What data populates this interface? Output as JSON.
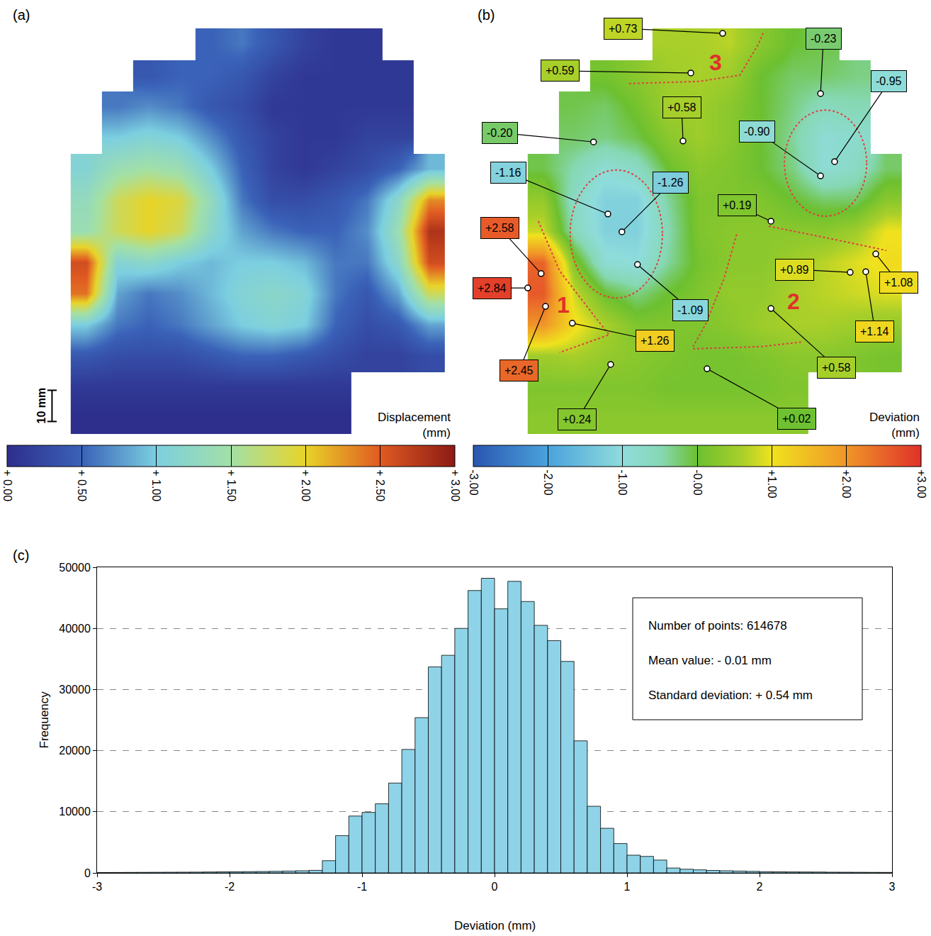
{
  "chart_data": [
    {
      "type": "heatmap",
      "panel_label": "(a)",
      "x": [
        5,
        15,
        25,
        35,
        45,
        55,
        65,
        75,
        85,
        95,
        105,
        115
      ],
      "y": [
        5,
        15,
        25,
        35,
        45,
        55,
        65,
        75,
        85,
        95,
        105,
        115,
        125
      ],
      "z": [
        [
          0.0,
          0.0,
          0.0,
          0.0,
          0.0,
          0.0,
          0.0,
          0.0,
          0.0,
          null,
          null,
          null
        ],
        [
          0.1,
          0.1,
          0.1,
          0.1,
          0.1,
          0.1,
          0.1,
          0.1,
          0.1,
          null,
          null,
          null
        ],
        [
          0.4,
          0.3,
          0.3,
          0.3,
          0.4,
          0.5,
          0.5,
          0.4,
          0.3,
          0.2,
          0.2,
          0.3
        ],
        [
          1.0,
          0.6,
          0.5,
          0.6,
          0.8,
          1.0,
          1.1,
          1.0,
          0.5,
          0.3,
          0.4,
          0.8
        ],
        [
          2.4,
          0.8,
          0.6,
          0.7,
          0.9,
          1.1,
          1.2,
          1.1,
          0.6,
          0.4,
          0.8,
          1.8
        ],
        [
          2.6,
          1.1,
          1.2,
          1.0,
          0.9,
          1.0,
          1.0,
          0.9,
          0.6,
          0.6,
          1.2,
          2.6
        ],
        [
          1.4,
          1.8,
          2.0,
          1.8,
          1.2,
          0.8,
          0.6,
          0.5,
          0.5,
          0.7,
          1.4,
          2.8
        ],
        [
          1.3,
          1.8,
          2.0,
          1.9,
          1.3,
          0.6,
          0.3,
          0.3,
          0.4,
          0.6,
          1.2,
          2.3
        ],
        [
          1.1,
          1.4,
          1.5,
          1.4,
          1.0,
          0.5,
          0.2,
          0.1,
          0.2,
          0.3,
          0.5,
          0.9
        ],
        [
          null,
          1.0,
          1.1,
          1.0,
          0.7,
          0.4,
          0.2,
          0.1,
          0.1,
          0.2,
          0.2,
          null
        ],
        [
          null,
          0.6,
          0.7,
          0.6,
          0.4,
          0.3,
          0.1,
          0.1,
          0.1,
          0.1,
          0.1,
          null
        ],
        [
          null,
          null,
          0.4,
          0.5,
          0.5,
          0.4,
          0.2,
          0.1,
          0.1,
          0.1,
          0.1,
          null
        ],
        [
          null,
          null,
          null,
          null,
          0.5,
          0.6,
          0.4,
          0.2,
          0.1,
          0.1,
          null,
          null
        ]
      ],
      "xlim": [
        -12,
        120
      ],
      "ylim": [
        0,
        130
      ],
      "tick_labels": false,
      "colorbar": {
        "title": "Displacement (mm)",
        "range": [
          0,
          3
        ],
        "ticks": [
          {
            "value": 0,
            "label": "+ 0.00"
          },
          {
            "value": 0.5,
            "label": "+ 0.50"
          },
          {
            "value": 1,
            "label": "+ 1.00"
          },
          {
            "value": 1.5,
            "label": "+ 1.50"
          },
          {
            "value": 2,
            "label": "+ 2.00"
          },
          {
            "value": 2.5,
            "label": "+ 2.50"
          },
          {
            "value": 3,
            "label": "+ 3.00"
          }
        ]
      },
      "scale_bar": {
        "label": "10 mm",
        "length": 10
      }
    },
    {
      "type": "heatmap",
      "panel_label": "(b)",
      "x": [
        5,
        15,
        25,
        35,
        45,
        55,
        65,
        75,
        85,
        95,
        105,
        115
      ],
      "y": [
        5,
        15,
        25,
        35,
        45,
        55,
        65,
        75,
        85,
        95,
        105,
        115,
        125
      ],
      "z": [
        [
          0.3,
          0.3,
          0.3,
          0.3,
          0.3,
          0.3,
          0.3,
          0.3,
          0.3,
          null,
          null,
          null
        ],
        [
          0.2,
          0.2,
          0.2,
          0.2,
          0.1,
          0.1,
          0.1,
          0.1,
          0.2,
          null,
          null,
          null
        ],
        [
          0.5,
          0.6,
          0.4,
          0.3,
          0.2,
          0.1,
          0.1,
          0.2,
          0.3,
          0.3,
          0.2,
          0.1
        ],
        [
          2.0,
          1.1,
          0.6,
          0.2,
          0.2,
          0.2,
          0.3,
          0.5,
          0.6,
          0.6,
          0.5,
          0.4
        ],
        [
          2.6,
          0.8,
          0.0,
          -0.3,
          0.0,
          0.2,
          0.4,
          0.4,
          0.6,
          0.7,
          0.8,
          0.9
        ],
        [
          2.5,
          0.2,
          -0.9,
          -1.0,
          -0.4,
          0.1,
          0.3,
          0.3,
          0.5,
          0.7,
          0.9,
          1.1
        ],
        [
          0.8,
          -0.6,
          -1.2,
          -1.2,
          -0.5,
          0.2,
          0.3,
          0.3,
          0.3,
          0.3,
          0.5,
          1.0
        ],
        [
          0.4,
          -0.7,
          -1.2,
          -1.2,
          -0.4,
          0.2,
          0.2,
          0.2,
          0.0,
          -0.2,
          -0.2,
          0.3
        ],
        [
          -0.1,
          -0.5,
          -0.9,
          -0.7,
          0.0,
          0.3,
          0.2,
          0.0,
          -0.3,
          -0.9,
          -0.7,
          -0.2
        ],
        [
          null,
          -0.2,
          -0.3,
          -0.1,
          0.3,
          0.5,
          0.3,
          0.0,
          -0.4,
          -0.9,
          -0.8,
          null
        ],
        [
          null,
          -0.1,
          -0.2,
          0.1,
          0.5,
          0.5,
          0.3,
          0.0,
          -0.3,
          -0.6,
          -0.5,
          null
        ],
        [
          null,
          null,
          0.1,
          0.3,
          0.5,
          0.6,
          0.5,
          0.0,
          -0.2,
          -0.2,
          -0.3,
          null
        ],
        [
          null,
          null,
          null,
          null,
          0.6,
          0.6,
          0.7,
          0.3,
          0.0,
          -0.1,
          null,
          null
        ]
      ],
      "xlim": [
        -12,
        120
      ],
      "ylim": [
        0,
        130
      ],
      "tick_labels": false,
      "colorbar": {
        "title": "Deviation (mm)",
        "range": [
          -3,
          3
        ],
        "ticks": [
          {
            "value": -3,
            "label": "-3.00"
          },
          {
            "value": -2,
            "label": "-2.00"
          },
          {
            "value": -1,
            "label": "-1.00"
          },
          {
            "value": 0,
            "label": "-0.00"
          },
          {
            "value": 1,
            "label": "+1.00"
          },
          {
            "value": 2,
            "label": "+2.00"
          },
          {
            "value": 3,
            "label": "+3.00"
          }
        ]
      },
      "points": [
        {
          "x": 62.5,
          "y": 128.4,
          "value": 0.73,
          "label": "+0.73"
        },
        {
          "x": 52.3,
          "y": 115.7,
          "value": 0.59,
          "label": "+0.59"
        },
        {
          "x": 93.9,
          "y": 109.1,
          "value": -0.23,
          "label": "-0.23"
        },
        {
          "x": 98.4,
          "y": 87.3,
          "value": -0.95,
          "label": "-0.95"
        },
        {
          "x": 49.8,
          "y": 93.9,
          "value": 0.58,
          "label": "+0.58"
        },
        {
          "x": 21.1,
          "y": 93.6,
          "value": -0.2,
          "label": "-0.20"
        },
        {
          "x": 93.9,
          "y": 82.7,
          "value": -0.9,
          "label": "-0.90"
        },
        {
          "x": 25.7,
          "y": 70.5,
          "value": -1.16,
          "label": "-1.16"
        },
        {
          "x": 30.2,
          "y": 64.8,
          "value": -1.26,
          "label": "-1.26"
        },
        {
          "x": 78,
          "y": 68.2,
          "value": 0.19,
          "label": "+0.19"
        },
        {
          "x": 4.3,
          "y": 51.4,
          "value": 2.58,
          "label": "+2.58"
        },
        {
          "x": 0,
          "y": 46.8,
          "value": 2.84,
          "label": "+2.84"
        },
        {
          "x": 35.2,
          "y": 54.3,
          "value": -1.09,
          "label": "-1.09"
        },
        {
          "x": 103.4,
          "y": 51.8,
          "value": 0.89,
          "label": "+0.89"
        },
        {
          "x": 111.6,
          "y": 57.7,
          "value": 1.08,
          "label": "+1.08"
        },
        {
          "x": 108.4,
          "y": 52,
          "value": 1.14,
          "label": "+1.14"
        },
        {
          "x": 14.3,
          "y": 35.5,
          "value": 1.26,
          "label": "+1.26"
        },
        {
          "x": 5.7,
          "y": 40.9,
          "value": 2.45,
          "label": "+2.45"
        },
        {
          "x": 78,
          "y": 40.2,
          "value": 0.58,
          "label": "+0.58"
        },
        {
          "x": 26.6,
          "y": 22.3,
          "value": 0.24,
          "label": "+0.24"
        },
        {
          "x": 57.5,
          "y": 20.9,
          "value": 0.02,
          "label": "+0.02"
        }
      ],
      "region_labels": [
        {
          "x": 11.4,
          "y": 41.4,
          "text": "1"
        },
        {
          "x": 85.2,
          "y": 42.5,
          "text": "2"
        },
        {
          "x": 60.2,
          "y": 119.1,
          "text": "3"
        }
      ],
      "region_outlines": [
        [
          [
            32.5,
            112.3
          ],
          [
            55,
            113
          ],
          [
            68,
            115
          ],
          [
            74,
            125
          ],
          [
            75.7,
            129
          ]
        ],
        [
          [
            3.4,
            68.2
          ],
          [
            10.2,
            52.3
          ],
          [
            21.6,
            37.5
          ],
          [
            26.1,
            31.8
          ],
          [
            10.2,
            26.1
          ]
        ],
        [
          [
            67,
            64
          ],
          [
            63,
            50
          ],
          [
            57,
            35
          ],
          [
            53,
            28
          ]
        ],
        [
          [
            53,
            27.3
          ],
          [
            75,
            28
          ],
          [
            88,
            29.5
          ]
        ],
        [
          [
            77.3,
            66.6
          ],
          [
            100,
            62
          ],
          [
            115,
            58.8
          ]
        ]
      ],
      "region_ellipses": [
        {
          "cx": 28.4,
          "cy": 64.1,
          "rx": 14.8,
          "ry": 20.5
        },
        {
          "cx": 95.5,
          "cy": 86.8,
          "rx": 13.2,
          "ry": 17
        }
      ]
    },
    {
      "type": "histogram",
      "panel_label": "(c)",
      "bins": [
        -3,
        -2.9,
        -2.8,
        -2.7,
        -2.6,
        -2.5,
        -2.4,
        -2.3,
        -2.2,
        -2.1,
        -2,
        -1.9,
        -1.8,
        -1.7,
        -1.6,
        -1.5,
        -1.4,
        -1.3,
        -1.2,
        -1.1,
        -1,
        -0.9,
        -0.8,
        -0.7,
        -0.6,
        -0.5,
        -0.4,
        -0.3,
        -0.2,
        -0.1,
        0,
        0.1,
        0.2,
        0.3,
        0.4,
        0.5,
        0.6,
        0.7,
        0.8,
        0.9,
        1,
        1.1,
        1.2,
        1.3,
        1.4,
        1.5,
        1.6,
        1.7,
        1.8,
        1.9,
        2,
        2.1,
        2.2,
        2.3,
        2.4,
        2.5,
        2.6,
        2.7,
        2.8,
        2.9,
        3
      ],
      "counts": [
        60,
        70,
        80,
        90,
        100,
        110,
        120,
        130,
        150,
        170,
        190,
        210,
        230,
        260,
        300,
        350,
        420,
        2000,
        6100,
        9300,
        9900,
        11300,
        14700,
        20200,
        25400,
        33700,
        35600,
        40000,
        46200,
        48200,
        43200,
        47700,
        44400,
        40500,
        38000,
        34600,
        21600,
        10900,
        7300,
        4800,
        2900,
        2700,
        2100,
        800,
        600,
        500,
        400,
        350,
        300,
        250,
        200,
        180,
        160,
        150,
        140,
        120,
        110,
        100,
        90,
        80
      ],
      "color": "#8fd3e8",
      "xlim": [
        -3,
        3
      ],
      "xticks": [
        -3,
        -2,
        -1,
        0,
        1,
        2,
        3
      ],
      "ylim": [
        0,
        50000
      ],
      "yticks": [
        0,
        10000,
        20000,
        30000,
        40000,
        50000
      ],
      "grid": true,
      "x_label": "Deviation (mm)",
      "y_label": "Frequency",
      "stats": [
        "Number of points: 614678",
        "Mean value: - 0.01 mm",
        "Standard deviation: + 0.54 mm"
      ]
    }
  ]
}
